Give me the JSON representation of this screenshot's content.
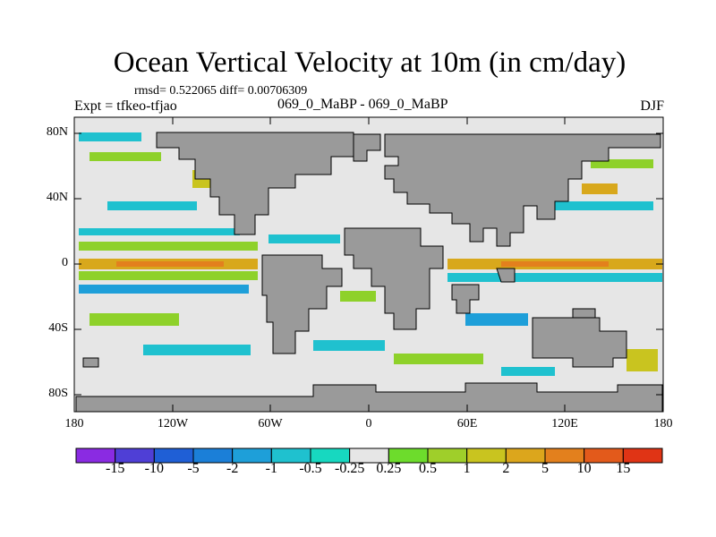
{
  "title": "Ocean Vertical Velocity at 10m (in cm/day)",
  "stats": "rmsd= 0.522065 diff= 0.00706309",
  "expt": "Expt = tfkeo-tfjao",
  "center_label": "069_0_MaBP - 069_0_MaBP",
  "season": "DJF",
  "y_axis": {
    "ticks": [
      "80N",
      "40N",
      "0",
      "40S",
      "80S"
    ]
  },
  "x_axis": {
    "ticks": [
      "180",
      "120W",
      "60W",
      "0",
      "60E",
      "120E",
      "180"
    ]
  },
  "colorbar": {
    "labels": [
      "-15",
      "-10",
      "-5",
      "-2",
      "-1",
      "-0.5",
      "-0.25",
      "0.25",
      "0.5",
      "1",
      "2",
      "5",
      "10",
      "15"
    ],
    "colors": [
      "#8a2be2",
      "#4f3fd6",
      "#1f5fd6",
      "#1b7fd8",
      "#1e9fd9",
      "#1fc1cf",
      "#17d8c0",
      "#e6e6e6",
      "#6ddc2c",
      "#9fcf2a",
      "#c9c41f",
      "#dca61c",
      "#e3801d",
      "#e35a1b",
      "#e03415"
    ]
  },
  "map_colors": {
    "land": "#9a9a9a",
    "ocean_neutral": "#e6e6e6"
  }
}
